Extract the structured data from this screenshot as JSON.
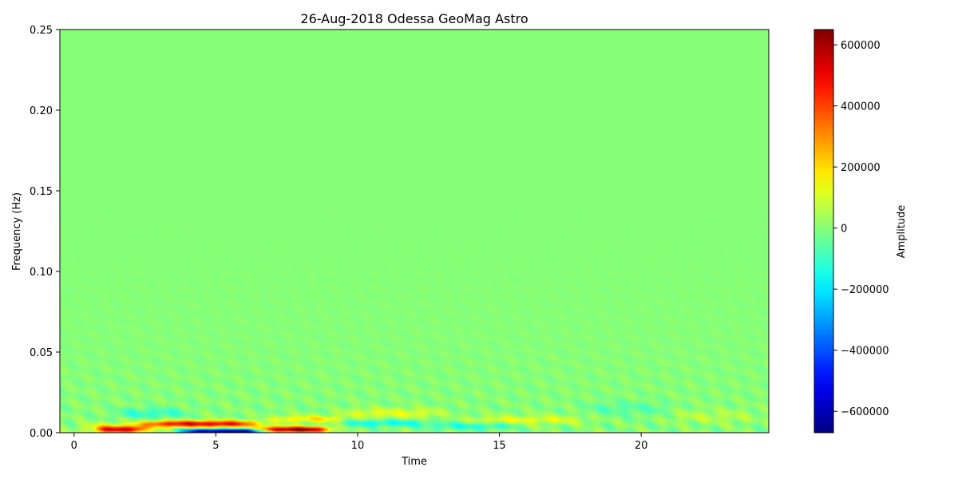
{
  "chart_data": {
    "type": "heatmap",
    "title": "26-Aug-2018 Odessa GeoMag Astro",
    "xlabel": "Time",
    "ylabel": "Frequency (Hz)",
    "xlim": [
      -0.5,
      24.5
    ],
    "ylim": [
      0.0,
      0.25
    ],
    "x_ticks": [
      0,
      5,
      10,
      15,
      20
    ],
    "x_tick_labels": [
      "0",
      "5",
      "10",
      "15",
      "20"
    ],
    "y_ticks": [
      0.0,
      0.05,
      0.1,
      0.15,
      0.2,
      0.25
    ],
    "y_tick_labels": [
      "0.00",
      "0.05",
      "0.10",
      "0.15",
      "0.20",
      "0.25"
    ],
    "colormap": "jet",
    "colorbar": {
      "label": "Amplitude",
      "range": [
        -670000,
        650000
      ],
      "ticks": [
        -600000,
        -400000,
        -200000,
        0,
        200000,
        400000,
        600000
      ],
      "tick_labels": [
        "−600000",
        "−400000",
        "−200000",
        "0",
        "200000",
        "400000",
        "600000"
      ]
    },
    "background_value": 0,
    "features": [
      {
        "t0": 0.2,
        "t1": 3.0,
        "f_center": 0.003,
        "f_width": 0.003,
        "amplitude": 130000
      },
      {
        "t0": 0.8,
        "t1": 2.5,
        "f_center": 0.002,
        "f_width": 0.002,
        "amplitude": 420000
      },
      {
        "t0": 2.5,
        "t1": 6.5,
        "f_center": 0.0055,
        "f_width": 0.002,
        "amplitude": 520000
      },
      {
        "t0": 3.8,
        "t1": 6.8,
        "f_center": 0.0008,
        "f_width": 0.0015,
        "amplitude": -660000
      },
      {
        "t0": 6.5,
        "t1": 9.0,
        "f_center": 0.002,
        "f_width": 0.0018,
        "amplitude": 640000
      },
      {
        "t0": 7.0,
        "t1": 9.5,
        "f_center": 0.0085,
        "f_width": 0.002,
        "amplitude": 180000
      },
      {
        "t0": 9.5,
        "t1": 12.5,
        "f_center": 0.006,
        "f_width": 0.002,
        "amplitude": -160000
      },
      {
        "t0": 9.5,
        "t1": 13.0,
        "f_center": 0.012,
        "f_width": 0.003,
        "amplitude": 120000
      },
      {
        "t0": 12.5,
        "t1": 15.5,
        "f_center": 0.004,
        "f_width": 0.002,
        "amplitude": -130000
      },
      {
        "t0": 14.0,
        "t1": 18.0,
        "f_center": 0.008,
        "f_width": 0.0025,
        "amplitude": 120000
      },
      {
        "t0": 1.5,
        "t1": 4.0,
        "f_center": 0.012,
        "f_width": 0.003,
        "amplitude": -110000
      },
      {
        "t0": 18.0,
        "t1": 21.0,
        "f_center": 0.015,
        "f_width": 0.004,
        "amplitude": -60000
      },
      {
        "t0": 21.0,
        "t1": 24.0,
        "f_center": 0.01,
        "f_width": 0.004,
        "amplitude": 60000
      }
    ]
  }
}
